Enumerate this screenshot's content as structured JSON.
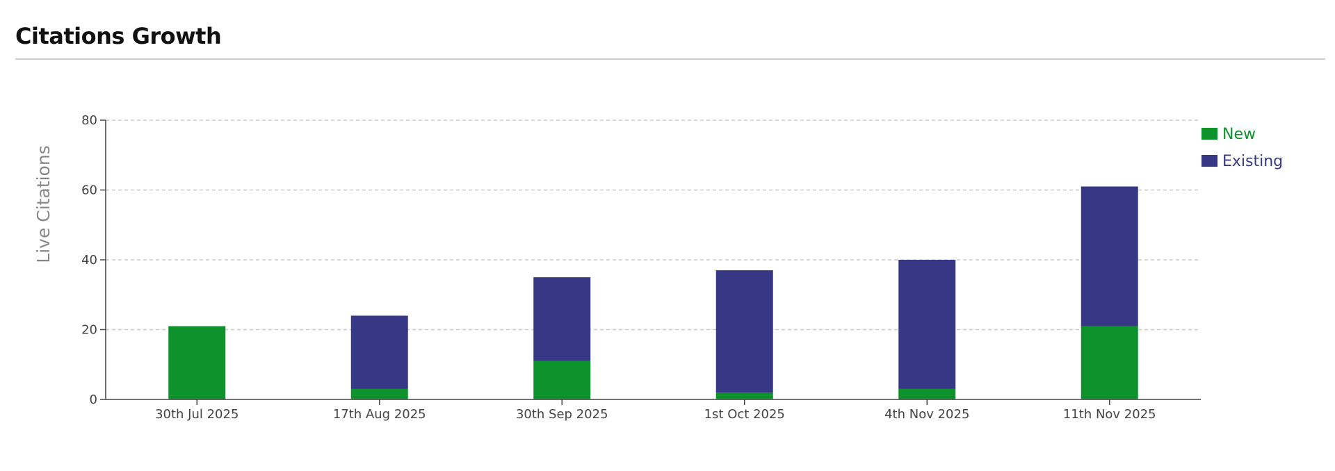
{
  "page": {
    "title": "Citations Growth"
  },
  "chart_data": {
    "type": "bar",
    "stacked": true,
    "categories": [
      "30th Jul 2025",
      "17th Aug 2025",
      "30th Sep 2025",
      "1st Oct 2025",
      "4th Nov 2025",
      "11th Nov 2025"
    ],
    "series": [
      {
        "name": "New",
        "values": [
          21,
          3,
          11,
          2,
          3,
          21
        ],
        "color": "#0e922b"
      },
      {
        "name": "Existing",
        "values": [
          0,
          21,
          24,
          35,
          37,
          40
        ],
        "color": "#363885"
      }
    ],
    "ylabel": "Live Citations",
    "ylim": [
      0,
      80
    ],
    "yticks": [
      0,
      20,
      40,
      60,
      80
    ],
    "grid": "horizontal-dashed",
    "legend_position": "top-right"
  }
}
